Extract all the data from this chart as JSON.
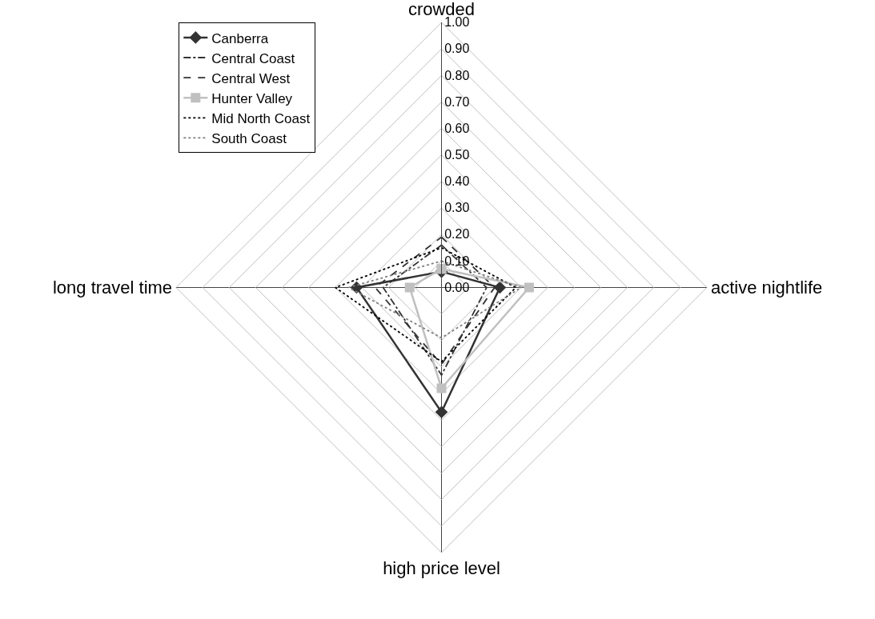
{
  "chart_data": {
    "type": "radar",
    "categories": [
      "crowded",
      "active nightlife",
      "high price level",
      "long travel time"
    ],
    "ylim": [
      0,
      1
    ],
    "yticks": [
      {
        "value": 0,
        "label": "0.00"
      },
      {
        "value": 0.1,
        "label": "0.10"
      },
      {
        "value": 0.2,
        "label": "0.20"
      },
      {
        "value": 0.3,
        "label": "0.30"
      },
      {
        "value": 0.4,
        "label": "0.40"
      },
      {
        "value": 0.5,
        "label": "0.50"
      },
      {
        "value": 0.6,
        "label": "0.60"
      },
      {
        "value": 0.7,
        "label": "0.70"
      },
      {
        "value": 0.8,
        "label": "0.80"
      },
      {
        "value": 0.9,
        "label": "0.90"
      },
      {
        "value": 1,
        "label": "1.00"
      }
    ],
    "grid": true,
    "legend": "top left",
    "series": [
      {
        "name": "Canberra",
        "color": "#333333",
        "line_style": "solid",
        "marker": "diamond",
        "values": [
          0.06,
          0.22,
          0.47,
          0.32
        ]
      },
      {
        "name": "Central Coast",
        "color": "#333333",
        "line_style": "dashdot",
        "marker": "none",
        "values": [
          0.16,
          0.17,
          0.33,
          0.22
        ]
      },
      {
        "name": "Central West",
        "color": "#333333",
        "line_style": "dashed",
        "marker": "none",
        "values": [
          0.19,
          0.2,
          0.29,
          0.25
        ]
      },
      {
        "name": "Hunter Valley",
        "color": "#c0c0c0",
        "line_style": "solid",
        "marker": "square",
        "values": [
          0.07,
          0.33,
          0.38,
          0.12
        ]
      },
      {
        "name": "Mid North Coast",
        "color": "#000000",
        "line_style": "dotted",
        "marker": "none",
        "values": [
          0.15,
          0.28,
          0.28,
          0.4
        ]
      },
      {
        "name": "South Coast",
        "color": "#808080",
        "line_style": "dotted",
        "marker": "none",
        "values": [
          0.1,
          0.3,
          0.19,
          0.35
        ]
      }
    ]
  }
}
